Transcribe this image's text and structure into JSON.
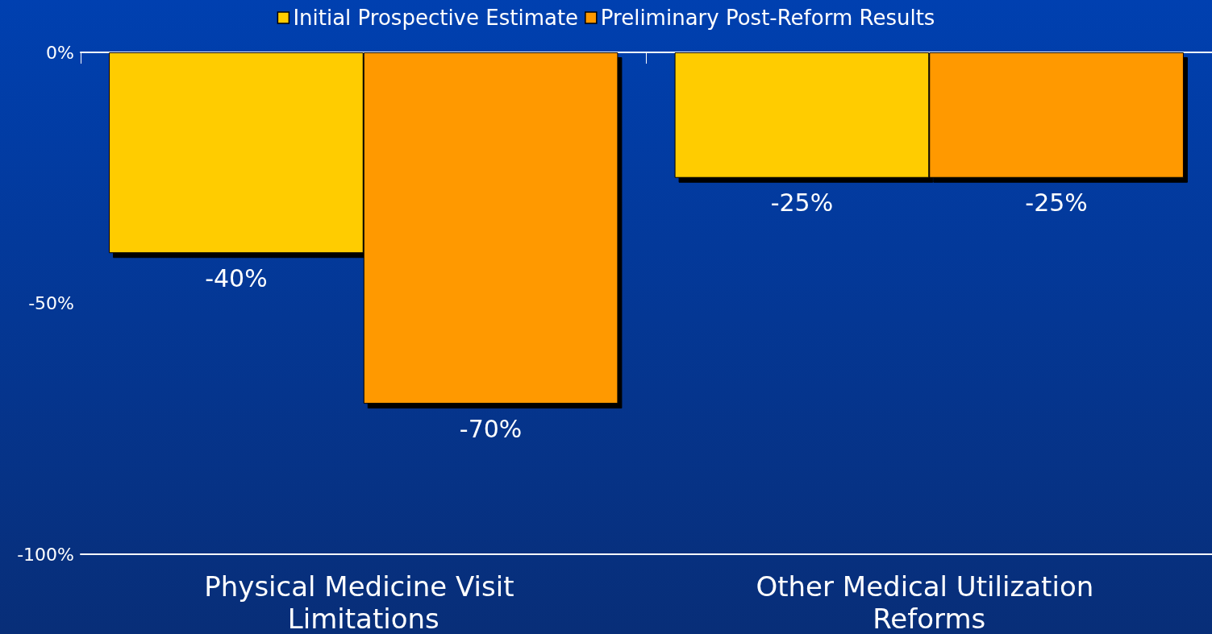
{
  "chart_data": {
    "type": "bar",
    "categories": [
      "Physical Medicine Visit Limitations",
      "Other Medical Utilization Reforms"
    ],
    "series": [
      {
        "name": "Initial Prospective Estimate",
        "color": "#ffcc00",
        "values": [
          -40,
          -25
        ],
        "value_labels": [
          "-40%",
          "-25%"
        ]
      },
      {
        "name": "Preliminary Post-Reform Results",
        "color": "#ff9900",
        "values": [
          -70,
          -25
        ],
        "value_labels": [
          "-70%",
          "-25%"
        ]
      }
    ],
    "ylim": [
      -100,
      0
    ],
    "yticks": [
      {
        "value": 0,
        "label": "0%"
      },
      {
        "value": -50,
        "label": "-50%"
      },
      {
        "value": -100,
        "label": "-100%"
      }
    ],
    "grid": false,
    "legend": "top"
  }
}
